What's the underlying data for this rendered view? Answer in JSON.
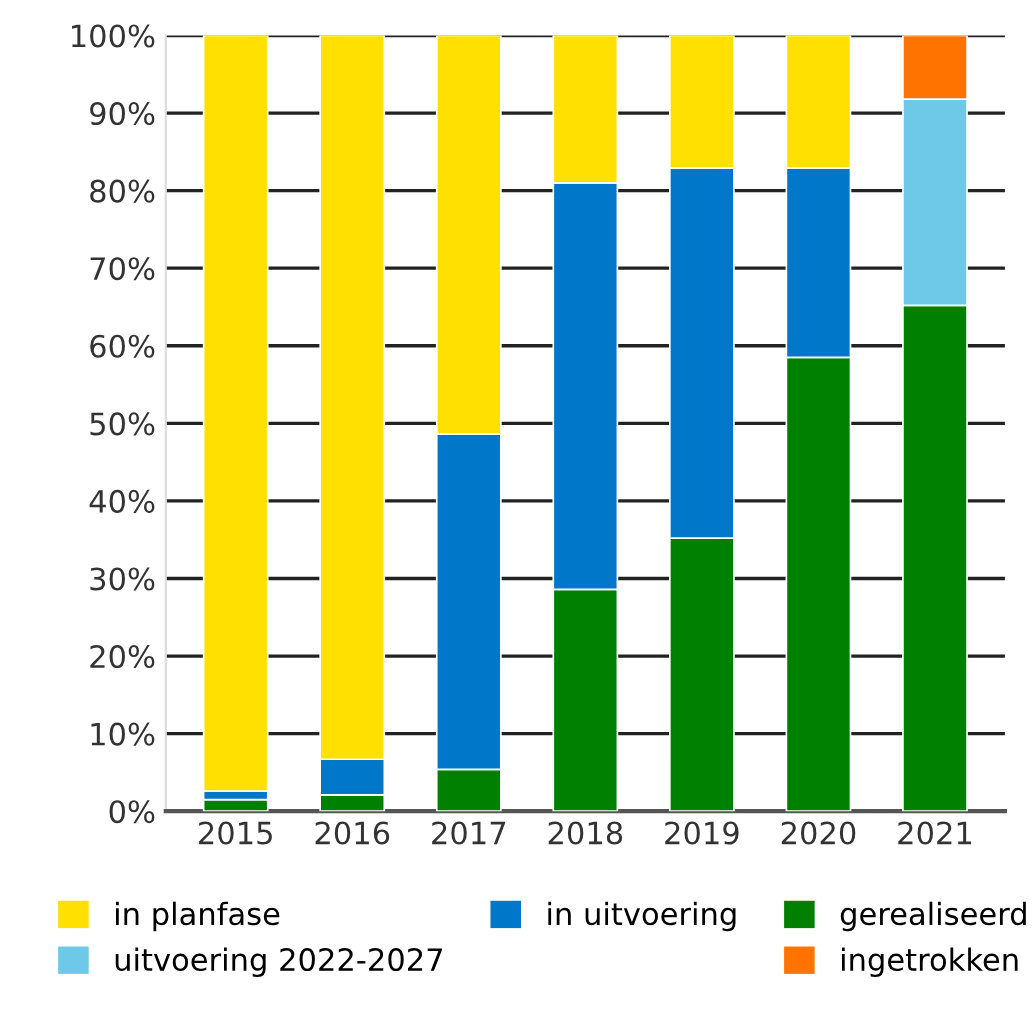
{
  "chart_data": {
    "type": "bar",
    "stacked": true,
    "categories": [
      "2015",
      "2016",
      "2017",
      "2018",
      "2019",
      "2020",
      "2021"
    ],
    "series": [
      {
        "name": "gerealiseerd",
        "color": "#008000",
        "values": [
          1.5,
          2.1,
          5.4,
          28.6,
          35.2,
          58.5,
          65.2
        ]
      },
      {
        "name": "in uitvoering",
        "color": "#0077c8",
        "values": [
          1.1,
          4.6,
          43.2,
          52.4,
          47.7,
          24.4,
          null
        ]
      },
      {
        "name": "uitvoering 2022-2027",
        "color": "#6ec8e8",
        "values": [
          null,
          null,
          null,
          null,
          null,
          null,
          26.6
        ]
      },
      {
        "name": "in planfase",
        "color": "#ffe000",
        "values": [
          97.4,
          93.3,
          51.4,
          19.0,
          17.1,
          17.1,
          null
        ]
      },
      {
        "name": "ingetrokken",
        "color": "#ff7300",
        "values": [
          null,
          null,
          null,
          null,
          null,
          null,
          8.2
        ]
      }
    ],
    "ylim": [
      0,
      100
    ],
    "yticks": [
      {
        "value": 0,
        "label": "0%"
      },
      {
        "value": 10,
        "label": "10%"
      },
      {
        "value": 20,
        "label": "20%"
      },
      {
        "value": 30,
        "label": "30%"
      },
      {
        "value": 40,
        "label": "40%"
      },
      {
        "value": 50,
        "label": "50%"
      },
      {
        "value": 60,
        "label": "60%"
      },
      {
        "value": 70,
        "label": "70%"
      },
      {
        "value": 80,
        "label": "80%"
      },
      {
        "value": 90,
        "label": "90%"
      },
      {
        "value": 100,
        "label": "100%"
      }
    ],
    "grid": "y",
    "legend": "bottom"
  }
}
